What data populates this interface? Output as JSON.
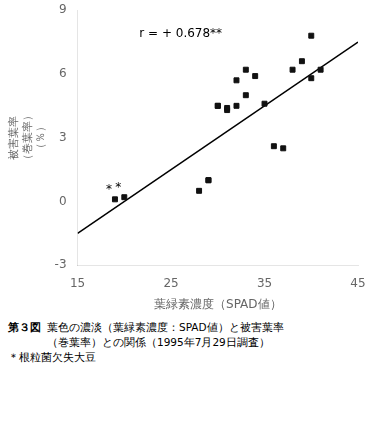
{
  "chart_data": {
    "type": "scatter",
    "x_label": "葉緑素濃度（SPAD値）",
    "y_label": [
      "被害葉率",
      "（巻葉率）",
      "（％）"
    ],
    "series": [
      {
        "type": "scatter",
        "marker": "square",
        "color": "#111111",
        "x": [
          19,
          20,
          28,
          29,
          29,
          30,
          30,
          31,
          31,
          32,
          32,
          33,
          33,
          34,
          35,
          36,
          37,
          38,
          39,
          40,
          40,
          41
        ],
        "values": [
          0.1,
          0.2,
          0.5,
          1.0,
          1.0,
          4.5,
          4.5,
          4.3,
          4.4,
          4.5,
          5.7,
          5.0,
          6.2,
          5.9,
          4.6,
          2.6,
          2.5,
          6.2,
          6.6,
          7.8,
          5.8,
          6.2
        ]
      },
      {
        "type": "line",
        "line_style": "solid",
        "color": "#000000",
        "x": [
          15,
          45
        ],
        "values": [
          -1.5,
          7.5
        ]
      }
    ],
    "annotations": [
      {
        "text": "*",
        "x": 19,
        "y": 0.1
      },
      {
        "text": "*",
        "x": 20,
        "y": 0.2
      },
      {
        "text": "r = + 0.678**"
      }
    ],
    "xlim": [
      15,
      45
    ],
    "xticks": [
      15,
      25,
      35,
      45
    ],
    "ylim": [
      -3,
      9
    ],
    "yticks": [
      -3,
      0,
      3,
      6,
      9
    ],
    "grid": false,
    "caption": [
      "第３図",
      "葉色の濃淡（葉緑素濃度：SPAD値）と被害葉率",
      "（巻葉率）との関係（1995年7月29日調査）",
      "＊根粒菌欠失大豆"
    ]
  }
}
